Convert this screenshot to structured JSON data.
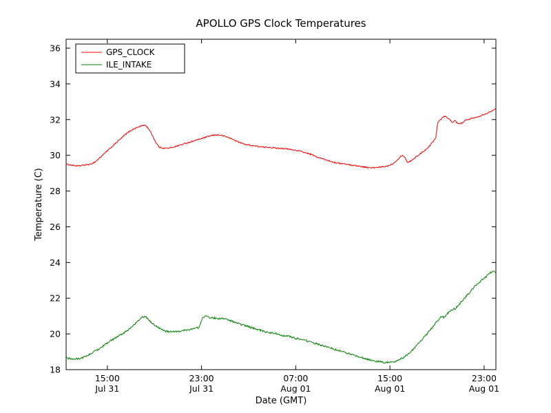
{
  "figure": {
    "title": "APOLLO GPS Clock Temperatures"
  },
  "chart_data": {
    "type": "line",
    "title": "APOLLO GPS Clock Temperatures",
    "xlabel": "Date (GMT)",
    "ylabel": "Temperature (C)",
    "x_unit": "hours since Jul 31 00:00 GMT",
    "xlim": [
      11.5,
      48.0
    ],
    "ylim": [
      18,
      36.5
    ],
    "yticks": [
      18,
      20,
      22,
      24,
      26,
      28,
      30,
      32,
      34,
      36
    ],
    "xticks": [
      {
        "value": 15,
        "time": "15:00",
        "date": "Jul 31"
      },
      {
        "value": 23,
        "time": "23:00",
        "date": "Jul 31"
      },
      {
        "value": 31,
        "time": "07:00",
        "date": "Aug 01"
      },
      {
        "value": 39,
        "time": "15:00",
        "date": "Aug 01"
      },
      {
        "value": 47,
        "time": "23:00",
        "date": "Aug 01"
      }
    ],
    "grid": false,
    "legend": {
      "position": "upper left",
      "entries": [
        "GPS_CLOCK",
        "ILE_INTAKE"
      ]
    },
    "series": [
      {
        "name": "GPS_CLOCK",
        "color": "#ff0000",
        "noise": 0.035,
        "points": [
          [
            11.5,
            29.5
          ],
          [
            12.0,
            29.45
          ],
          [
            12.5,
            29.4
          ],
          [
            13.0,
            29.45
          ],
          [
            13.6,
            29.5
          ],
          [
            14.0,
            29.65
          ],
          [
            14.5,
            29.95
          ],
          [
            15.0,
            30.25
          ],
          [
            15.5,
            30.55
          ],
          [
            16.0,
            30.85
          ],
          [
            16.5,
            31.15
          ],
          [
            17.0,
            31.4
          ],
          [
            17.5,
            31.55
          ],
          [
            17.9,
            31.65
          ],
          [
            18.2,
            31.7
          ],
          [
            18.5,
            31.5
          ],
          [
            18.8,
            31.15
          ],
          [
            19.1,
            30.75
          ],
          [
            19.4,
            30.45
          ],
          [
            19.8,
            30.4
          ],
          [
            20.3,
            30.4
          ],
          [
            20.8,
            30.5
          ],
          [
            21.3,
            30.6
          ],
          [
            21.8,
            30.7
          ],
          [
            22.3,
            30.8
          ],
          [
            22.8,
            30.9
          ],
          [
            23.3,
            31.0
          ],
          [
            23.8,
            31.1
          ],
          [
            24.3,
            31.15
          ],
          [
            24.8,
            31.1
          ],
          [
            25.3,
            31.0
          ],
          [
            25.8,
            30.85
          ],
          [
            26.3,
            30.7
          ],
          [
            26.8,
            30.6
          ],
          [
            27.3,
            30.55
          ],
          [
            27.8,
            30.5
          ],
          [
            28.3,
            30.45
          ],
          [
            28.8,
            30.45
          ],
          [
            29.3,
            30.4
          ],
          [
            29.8,
            30.4
          ],
          [
            30.3,
            30.35
          ],
          [
            30.8,
            30.3
          ],
          [
            31.3,
            30.25
          ],
          [
            31.8,
            30.15
          ],
          [
            32.3,
            30.05
          ],
          [
            32.8,
            29.9
          ],
          [
            33.3,
            29.8
          ],
          [
            33.8,
            29.7
          ],
          [
            34.3,
            29.6
          ],
          [
            34.8,
            29.55
          ],
          [
            35.3,
            29.5
          ],
          [
            35.8,
            29.45
          ],
          [
            36.3,
            29.4
          ],
          [
            36.8,
            29.35
          ],
          [
            37.3,
            29.3
          ],
          [
            37.8,
            29.3
          ],
          [
            38.3,
            29.35
          ],
          [
            38.8,
            29.4
          ],
          [
            39.3,
            29.55
          ],
          [
            39.7,
            29.8
          ],
          [
            40.0,
            30.0
          ],
          [
            40.2,
            29.95
          ],
          [
            40.5,
            29.6
          ],
          [
            40.8,
            29.7
          ],
          [
            41.2,
            29.9
          ],
          [
            41.6,
            30.1
          ],
          [
            42.0,
            30.3
          ],
          [
            42.4,
            30.55
          ],
          [
            42.7,
            30.8
          ],
          [
            42.9,
            31.0
          ],
          [
            43.0,
            31.6
          ],
          [
            43.1,
            31.9
          ],
          [
            43.3,
            32.0
          ],
          [
            43.5,
            32.15
          ],
          [
            43.7,
            32.2
          ],
          [
            44.0,
            32.05
          ],
          [
            44.3,
            31.85
          ],
          [
            44.5,
            31.95
          ],
          [
            44.8,
            31.75
          ],
          [
            45.1,
            31.8
          ],
          [
            45.4,
            31.95
          ],
          [
            45.8,
            32.05
          ],
          [
            46.2,
            32.1
          ],
          [
            46.6,
            32.2
          ],
          [
            47.0,
            32.3
          ],
          [
            47.4,
            32.4
          ],
          [
            47.7,
            32.5
          ],
          [
            48.0,
            32.65
          ]
        ]
      },
      {
        "name": "ILE_INTAKE",
        "color": "#008000",
        "noise": 0.05,
        "points": [
          [
            11.5,
            18.65
          ],
          [
            12.0,
            18.6
          ],
          [
            12.5,
            18.6
          ],
          [
            13.0,
            18.7
          ],
          [
            13.5,
            18.85
          ],
          [
            14.0,
            19.05
          ],
          [
            14.5,
            19.25
          ],
          [
            15.0,
            19.5
          ],
          [
            15.5,
            19.7
          ],
          [
            16.0,
            19.9
          ],
          [
            16.5,
            20.1
          ],
          [
            17.0,
            20.35
          ],
          [
            17.5,
            20.65
          ],
          [
            17.9,
            20.9
          ],
          [
            18.2,
            21.0
          ],
          [
            18.5,
            20.8
          ],
          [
            18.8,
            20.6
          ],
          [
            19.1,
            20.45
          ],
          [
            19.5,
            20.3
          ],
          [
            20.0,
            20.15
          ],
          [
            20.5,
            20.1
          ],
          [
            21.0,
            20.15
          ],
          [
            21.5,
            20.2
          ],
          [
            22.0,
            20.25
          ],
          [
            22.4,
            20.3
          ],
          [
            22.7,
            20.35
          ],
          [
            22.9,
            20.5
          ],
          [
            23.1,
            20.95
          ],
          [
            23.4,
            21.0
          ],
          [
            23.7,
            20.9
          ],
          [
            24.0,
            20.9
          ],
          [
            24.4,
            20.85
          ],
          [
            24.8,
            20.85
          ],
          [
            25.2,
            20.8
          ],
          [
            25.6,
            20.7
          ],
          [
            26.0,
            20.6
          ],
          [
            26.5,
            20.5
          ],
          [
            27.0,
            20.4
          ],
          [
            27.5,
            20.3
          ],
          [
            28.0,
            20.2
          ],
          [
            28.5,
            20.1
          ],
          [
            29.0,
            20.05
          ],
          [
            29.5,
            20.0
          ],
          [
            30.0,
            19.9
          ],
          [
            30.5,
            19.85
          ],
          [
            31.0,
            19.75
          ],
          [
            31.5,
            19.7
          ],
          [
            32.0,
            19.6
          ],
          [
            32.5,
            19.5
          ],
          [
            33.0,
            19.4
          ],
          [
            33.5,
            19.3
          ],
          [
            34.0,
            19.2
          ],
          [
            34.5,
            19.1
          ],
          [
            35.0,
            19.0
          ],
          [
            35.5,
            18.9
          ],
          [
            36.0,
            18.8
          ],
          [
            36.5,
            18.7
          ],
          [
            37.0,
            18.6
          ],
          [
            37.5,
            18.5
          ],
          [
            38.0,
            18.45
          ],
          [
            38.5,
            18.4
          ],
          [
            39.0,
            18.4
          ],
          [
            39.4,
            18.45
          ],
          [
            39.8,
            18.55
          ],
          [
            40.2,
            18.7
          ],
          [
            40.6,
            18.9
          ],
          [
            41.0,
            19.15
          ],
          [
            41.4,
            19.45
          ],
          [
            41.8,
            19.75
          ],
          [
            42.2,
            20.05
          ],
          [
            42.6,
            20.35
          ],
          [
            43.0,
            20.7
          ],
          [
            43.4,
            21.0
          ],
          [
            43.6,
            20.9
          ],
          [
            43.9,
            21.15
          ],
          [
            44.2,
            21.3
          ],
          [
            44.6,
            21.45
          ],
          [
            45.0,
            21.75
          ],
          [
            45.4,
            22.05
          ],
          [
            45.8,
            22.35
          ],
          [
            46.2,
            22.65
          ],
          [
            46.6,
            22.9
          ],
          [
            47.0,
            23.1
          ],
          [
            47.4,
            23.35
          ],
          [
            47.7,
            23.5
          ],
          [
            48.0,
            23.45
          ]
        ]
      }
    ]
  }
}
